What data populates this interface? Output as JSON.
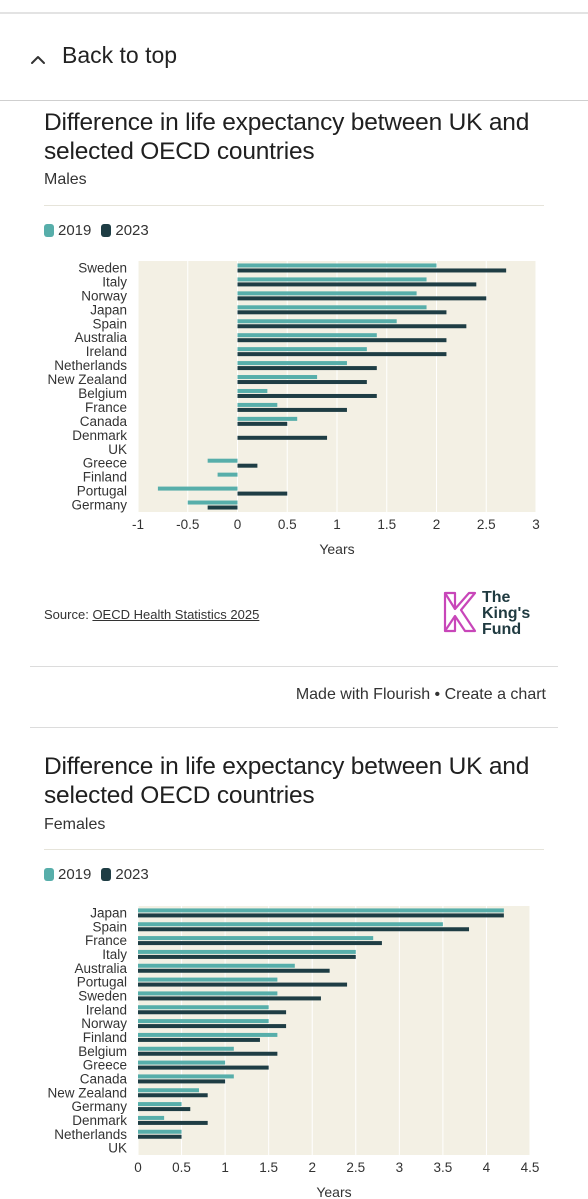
{
  "nav": {
    "back_to_top": "Back to top"
  },
  "colors": {
    "y2019": "#57aeaa",
    "y2023": "#1e3d44",
    "plot_bg": "#f3f0e4",
    "logo_pink": "#c846b9"
  },
  "charts": [
    {
      "title": "Difference in life expectancy between UK and selected OECD countries",
      "subtitle": "Males",
      "source_label": "Source:",
      "source_link": "OECD Health Statistics 2025",
      "logo_text": [
        "The",
        "King's",
        "Fund"
      ]
    },
    {
      "title": "Difference in life expectancy between UK and selected OECD countries",
      "subtitle": "Females"
    }
  ],
  "footer": {
    "made_with": "Made with Flourish",
    "separator": "•",
    "create": "Create a chart"
  },
  "chart_data": [
    {
      "type": "bar",
      "orientation": "horizontal",
      "title": "Difference in life expectancy between UK and selected OECD countries",
      "subtitle": "Males",
      "xlabel": "Years",
      "xlim": [
        -1,
        3
      ],
      "ticks": [
        -1,
        -0.5,
        0,
        0.5,
        1,
        1.5,
        2,
        2.5,
        3
      ],
      "tick_labels": [
        "-1",
        "-0.5",
        "0",
        "0.5",
        "1",
        "1.5",
        "2",
        "2.5",
        "3"
      ],
      "grid": true,
      "legend": "top-left",
      "categories": [
        "Sweden",
        "Italy",
        "Norway",
        "Japan",
        "Spain",
        "Australia",
        "Ireland",
        "Netherlands",
        "New Zealand",
        "Belgium",
        "France",
        "Canada",
        "Denmark",
        "UK",
        "Greece",
        "Finland",
        "Portugal",
        "Germany"
      ],
      "series": [
        {
          "name": "2019",
          "values": [
            2.0,
            1.9,
            1.8,
            1.9,
            1.6,
            1.4,
            1.3,
            1.1,
            0.8,
            0.3,
            0.4,
            0.6,
            0.0,
            0.0,
            -0.3,
            -0.2,
            -0.8,
            -0.5
          ]
        },
        {
          "name": "2023",
          "values": [
            2.7,
            2.4,
            2.5,
            2.1,
            2.3,
            2.1,
            2.1,
            1.4,
            1.3,
            1.4,
            1.1,
            0.5,
            0.9,
            0.0,
            0.2,
            0.0,
            0.5,
            -0.3
          ]
        }
      ]
    },
    {
      "type": "bar",
      "orientation": "horizontal",
      "title": "Difference in life expectancy between UK and selected OECD countries",
      "subtitle": "Females",
      "xlabel": "Years",
      "xlim": [
        0,
        4.5
      ],
      "ticks": [
        0,
        0.5,
        1,
        1.5,
        2,
        2.5,
        3,
        3.5,
        4,
        4.5
      ],
      "tick_labels": [
        "0",
        "0.5",
        "1",
        "1.5",
        "2",
        "2.5",
        "3",
        "3.5",
        "4",
        "4.5"
      ],
      "grid": true,
      "legend": "top-left",
      "categories": [
        "Japan",
        "Spain",
        "France",
        "Italy",
        "Australia",
        "Portugal",
        "Sweden",
        "Ireland",
        "Norway",
        "Finland",
        "Belgium",
        "Greece",
        "Canada",
        "New Zealand",
        "Germany",
        "Denmark",
        "Netherlands",
        "UK"
      ],
      "series": [
        {
          "name": "2019",
          "values": [
            4.2,
            3.5,
            2.7,
            2.5,
            1.8,
            1.6,
            1.6,
            1.5,
            1.5,
            1.6,
            1.1,
            1.0,
            1.1,
            0.7,
            0.5,
            0.3,
            0.5,
            0.0
          ]
        },
        {
          "name": "2023",
          "values": [
            4.2,
            3.8,
            2.8,
            2.5,
            2.2,
            2.4,
            2.1,
            1.7,
            1.7,
            1.4,
            1.6,
            1.5,
            1.0,
            0.8,
            0.6,
            0.8,
            0.5,
            0.0
          ]
        }
      ]
    }
  ]
}
